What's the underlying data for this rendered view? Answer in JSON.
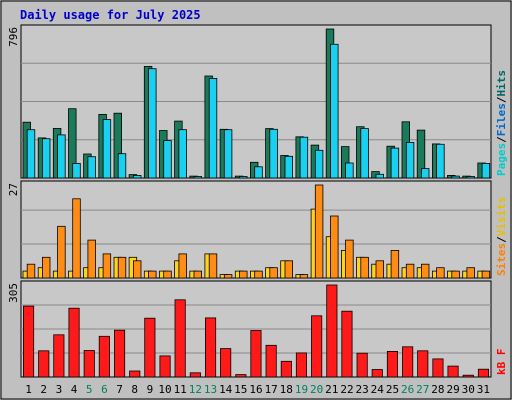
{
  "title": "Daily usage for July 2025",
  "colors": {
    "background": "#c0c0c0",
    "plot_bg": "#c8c8c8",
    "title_text": "#0000cc",
    "hits": "#006666",
    "hits_bar": "#1b7a5a",
    "files": "#0066cc",
    "files_bar": "#19d0f0",
    "pages": "#00cccc",
    "visits": "#e6c000",
    "visits_bar": "#ffd21e",
    "sites": "#ff8000",
    "sites_bar": "#ff8c14",
    "kbytes": "#ff0000",
    "kbytes_bar": "#ff1a1a",
    "weekend_label": "#008060",
    "weekday_label": "#000000"
  },
  "chart_data": [
    {
      "type": "bar",
      "name": "hits-files",
      "categories": [
        "1",
        "2",
        "3",
        "4",
        "5",
        "6",
        "7",
        "8",
        "9",
        "10",
        "11",
        "12",
        "13",
        "14",
        "15",
        "16",
        "17",
        "18",
        "19",
        "20",
        "21",
        "22",
        "23",
        "24",
        "25",
        "26",
        "27",
        "28",
        "29",
        "30",
        "31"
      ],
      "weekend_days": [
        "5",
        "6",
        "12",
        "13",
        "19",
        "20",
        "26",
        "27"
      ],
      "ymax_label": "796",
      "ylim": [
        0,
        796
      ],
      "ylabel_parts": [
        "Pages",
        "/",
        "Files",
        "/",
        "Hits"
      ],
      "series": [
        {
          "name": "Hits",
          "values": [
            298,
            214,
            265,
            370,
            128,
            340,
            346,
            18,
            596,
            254,
            304,
            10,
            545,
            260,
            10,
            84,
            264,
            120,
            220,
            176,
            796,
            168,
            274,
            34,
            170,
            300,
            256,
            182,
            14,
            10,
            80
          ]
        },
        {
          "name": "Files",
          "values": [
            258,
            210,
            230,
            78,
            114,
            312,
            130,
            14,
            584,
            200,
            258,
            8,
            532,
            258,
            8,
            60,
            260,
            116,
            218,
            148,
            714,
            80,
            264,
            20,
            160,
            190,
            50,
            180,
            10,
            8,
            78
          ]
        }
      ]
    },
    {
      "type": "bar",
      "name": "sites-visits",
      "categories": [
        "1",
        "2",
        "3",
        "4",
        "5",
        "6",
        "7",
        "8",
        "9",
        "10",
        "11",
        "12",
        "13",
        "14",
        "15",
        "16",
        "17",
        "18",
        "19",
        "20",
        "21",
        "22",
        "23",
        "24",
        "25",
        "26",
        "27",
        "28",
        "29",
        "30",
        "31"
      ],
      "ymax_label": "27",
      "ylim": [
        0,
        27
      ],
      "ylabel_parts": [
        "Sites",
        "/",
        "Visits"
      ],
      "series": [
        {
          "name": "Visits",
          "values": [
            2,
            3,
            2,
            2,
            3,
            3,
            6,
            6,
            2,
            2,
            5,
            2,
            7,
            1,
            2,
            2,
            3,
            5,
            1,
            20,
            12,
            8,
            6,
            4,
            4,
            3,
            3,
            2,
            2,
            2,
            2
          ]
        },
        {
          "name": "Sites",
          "values": [
            4,
            6,
            15,
            23,
            11,
            7,
            6,
            5,
            2,
            2,
            7,
            2,
            7,
            1,
            2,
            2,
            3,
            5,
            1,
            27,
            18,
            11,
            6,
            5,
            8,
            4,
            4,
            3,
            2,
            3,
            2
          ]
        }
      ]
    },
    {
      "type": "bar",
      "name": "kbytes",
      "categories": [
        "1",
        "2",
        "3",
        "4",
        "5",
        "6",
        "7",
        "8",
        "9",
        "10",
        "11",
        "12",
        "13",
        "14",
        "15",
        "16",
        "17",
        "18",
        "19",
        "20",
        "21",
        "22",
        "23",
        "24",
        "25",
        "26",
        "27",
        "28",
        "29",
        "30",
        "31"
      ],
      "ymax_label": "305",
      "ylim": [
        0,
        305
      ],
      "ylabel_parts": [
        "kB",
        "F"
      ],
      "series": [
        {
          "name": "kB F",
          "values": [
            235,
            87,
            140,
            228,
            88,
            135,
            155,
            20,
            195,
            70,
            256,
            14,
            196,
            94,
            8,
            154,
            105,
            52,
            80,
            203,
            305,
            218,
            79,
            25,
            85,
            100,
            87,
            60,
            36,
            6,
            26
          ]
        }
      ]
    }
  ]
}
